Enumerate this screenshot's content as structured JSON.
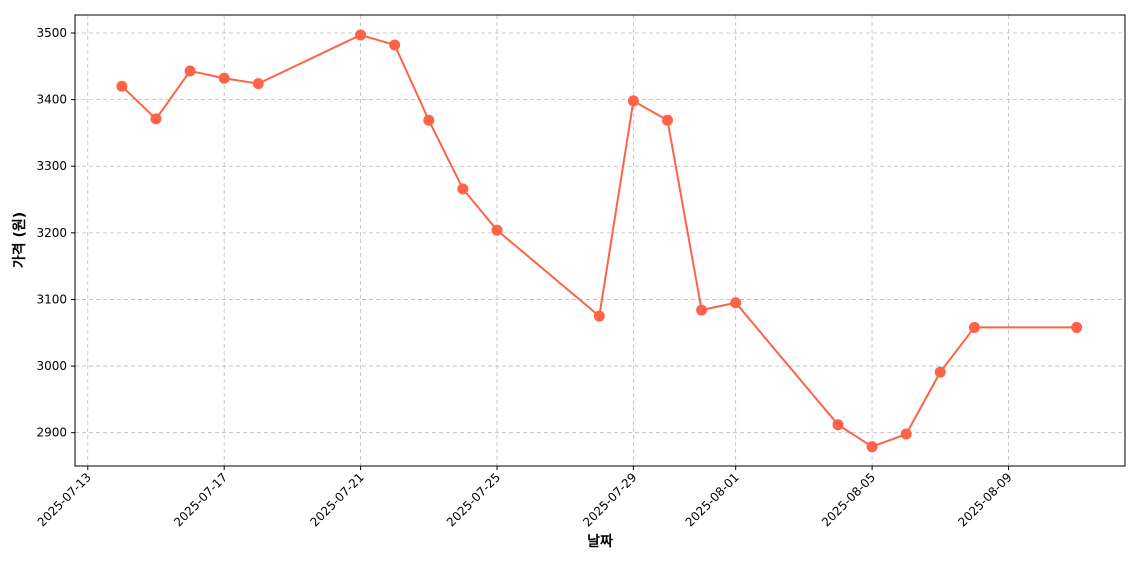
{
  "chart_data": {
    "type": "line",
    "x_label": "날짜",
    "y_label": "가격 (원)",
    "x": [
      "2025-07-14",
      "2025-07-15",
      "2025-07-16",
      "2025-07-17",
      "2025-07-18",
      "2025-07-21",
      "2025-07-22",
      "2025-07-23",
      "2025-07-24",
      "2025-07-25",
      "2025-07-28",
      "2025-07-29",
      "2025-07-30",
      "2025-07-31",
      "2025-08-01",
      "2025-08-04",
      "2025-08-05",
      "2025-08-06",
      "2025-08-07",
      "2025-08-08",
      "2025-08-11"
    ],
    "series": [
      {
        "color": "#ff6347",
        "values": [
          3420,
          3371,
          3443,
          3432,
          3424,
          3497,
          3482,
          3369,
          3266,
          3204,
          3075,
          3398,
          3369,
          3084,
          3095,
          2912,
          2879,
          2898,
          2991,
          3058,
          3058
        ]
      }
    ],
    "xlim": [
      "2025-07-12T15:00",
      "2025-08-12T10:00"
    ],
    "xticks": [
      "2025-07-13",
      "2025-07-17",
      "2025-07-21",
      "2025-07-25",
      "2025-07-29",
      "2025-08-01",
      "2025-08-05",
      "2025-08-09"
    ],
    "ylim": [
      2850,
      3527
    ],
    "yticks": [
      2900,
      3000,
      3100,
      3200,
      3300,
      3400,
      3500
    ],
    "grid": true
  }
}
